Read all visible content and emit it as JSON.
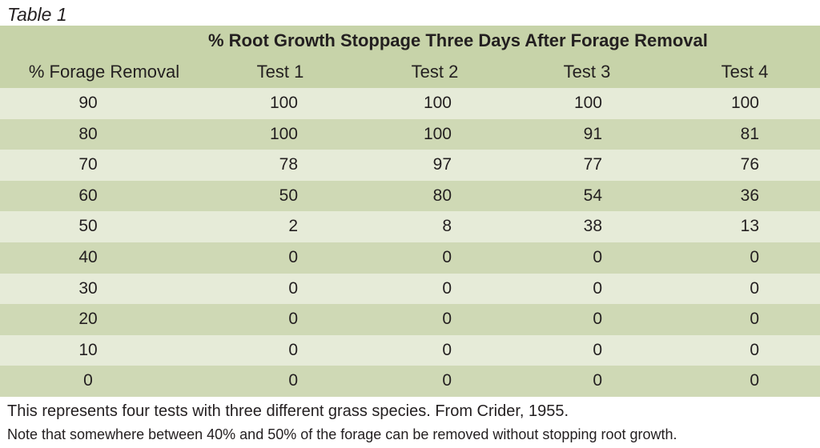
{
  "caption": "Table 1",
  "table": {
    "title": "% Root Growth Stoppage Three Days After Forage Removal",
    "columns": [
      "% Forage Removal",
      "Test 1",
      "Test 2",
      "Test 3",
      "Test 4"
    ],
    "rows": [
      [
        "90",
        "100",
        "100",
        "100",
        "100"
      ],
      [
        "80",
        "100",
        "100",
        "91",
        "81"
      ],
      [
        "70",
        "78",
        "97",
        "77",
        "76"
      ],
      [
        "60",
        "50",
        "80",
        "54",
        "36"
      ],
      [
        "50",
        "2",
        "8",
        "38",
        "13"
      ],
      [
        "40",
        "0",
        "0",
        "0",
        "0"
      ],
      [
        "30",
        "0",
        "0",
        "0",
        "0"
      ],
      [
        "20",
        "0",
        "0",
        "0",
        "0"
      ],
      [
        "10",
        "0",
        "0",
        "0",
        "0"
      ],
      [
        "0",
        "0",
        "0",
        "0",
        "0"
      ]
    ]
  },
  "footnotes": [
    "This represents four tests with three different grass species. From Crider, 1955.",
    "Note that somewhere between 40% and 50% of the forage can be removed without stopping root growth."
  ],
  "colors": {
    "header_bg": "#c7d3a9",
    "row_light": "#e6ebd8",
    "row_dark": "#cfd9b5",
    "text": "#231f20"
  }
}
